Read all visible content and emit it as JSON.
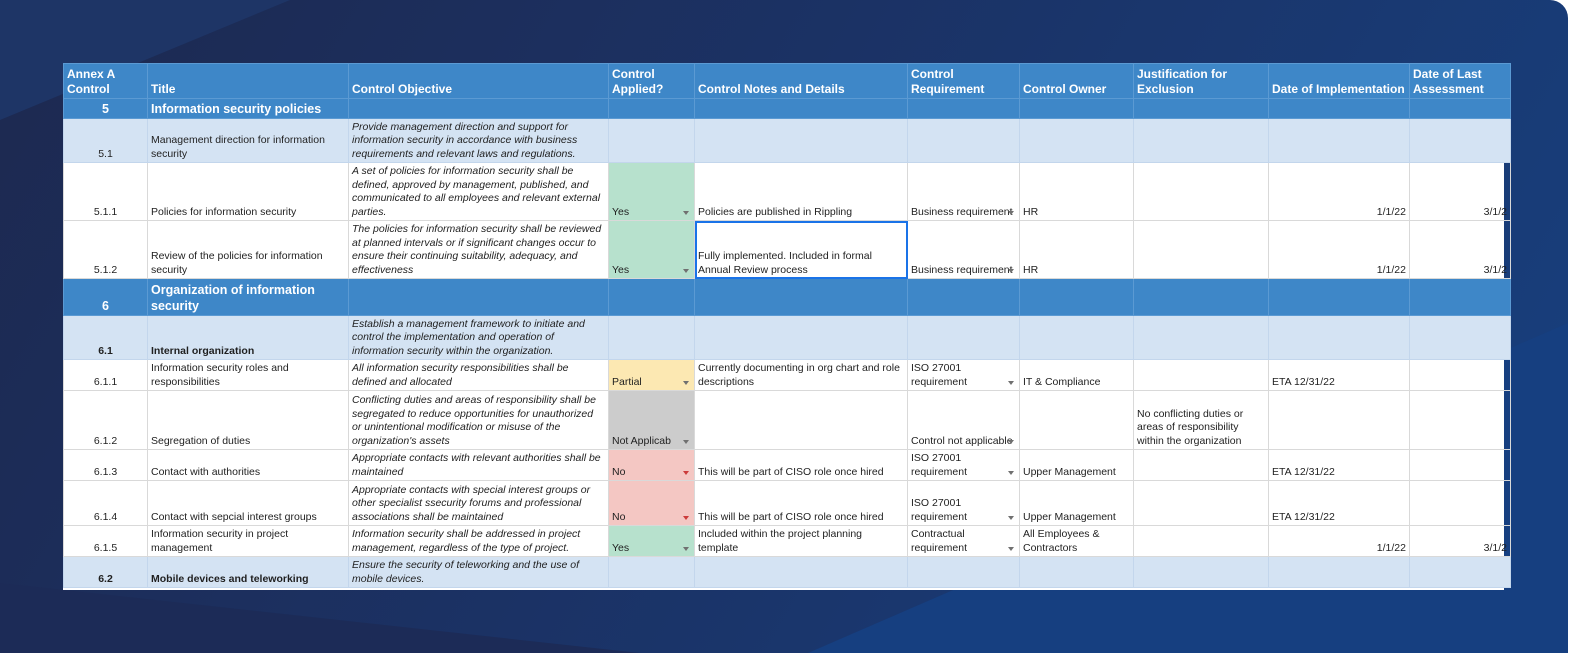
{
  "headers": {
    "annex": "Annex A Control",
    "title": "Title",
    "objective": "Control Objective",
    "applied": "Control Applied?",
    "notes": "Control Notes and Details",
    "requirement": "Control Requirement",
    "owner": "Control Owner",
    "justification": "Justification for Exclusion",
    "impl_date": "Date of Implementation",
    "assess_date": "Date of Last Assessment"
  },
  "rows": [
    {
      "num": "5",
      "title": "Information security policies"
    },
    {
      "num": "5.1",
      "title": "Management direction for information security",
      "objective": "Provide management direction and support for information security in accordance with business requirements and relevant laws and regulations."
    },
    {
      "num": "5.1.1",
      "title": "Policies for information security",
      "objective": "A set of policies for information security shall be defined, approved by management, published, and communicated to all employees and relevant external parties.",
      "applied": "Yes",
      "notes": "Policies are published in Rippling",
      "requirement": "Business requirement",
      "owner": "HR",
      "justification": "",
      "impl_date": "1/1/22",
      "assess_date": "3/1/2"
    },
    {
      "num": "5.1.2",
      "title": "Review of the policies for information security",
      "objective": "The policies for information security shall be reviewed at planned intervals or if significant changes occur to ensure their continuing suitability, adequacy, and effectiveness",
      "applied": "Yes",
      "notes": "Fully implemented. Included in formal Annual Review process",
      "requirement": "Business requirement",
      "owner": "HR",
      "justification": "",
      "impl_date": "1/1/22",
      "assess_date": "3/1/2"
    },
    {
      "num": "6",
      "title": "Organization of information security"
    },
    {
      "num": "6.1",
      "title": "Internal organization",
      "objective": "Establish a management framework to initiate and control the implementation and operation of information security within the organization."
    },
    {
      "num": "6.1.1",
      "title": "Information security roles and responsibilities",
      "objective": "All information security responsibilities shall be defined and allocated",
      "applied": "Partial",
      "notes": "Currently documenting in org chart and role descriptions",
      "requirement": "ISO 27001 requirement",
      "owner": "IT & Compliance",
      "justification": "",
      "impl_date": "ETA 12/31/22",
      "assess_date": ""
    },
    {
      "num": "6.1.2",
      "title": "Segregation of duties",
      "objective": "Conflicting duties and areas of responsibility shall be segregated to reduce opportunities for unauthorized or unintentional modification or misuse of the organization's assets",
      "applied": "Not Applicab",
      "notes": "",
      "requirement": "Control not applicable",
      "owner": "",
      "justification": "No conflicting duties or areas of responsibility within the organization",
      "impl_date": "",
      "assess_date": ""
    },
    {
      "num": "6.1.3",
      "title": "Contact with authorities",
      "objective": "Appropriate contacts with relevant authorities shall be maintained",
      "applied": "No",
      "notes": "This will be part of CISO role once hired",
      "requirement": "ISO 27001 requirement",
      "owner": "Upper Management",
      "justification": "",
      "impl_date": "ETA 12/31/22",
      "assess_date": ""
    },
    {
      "num": "6.1.4",
      "title": "Contact with sepcial interest groups",
      "objective": "Appropriate contacts with special interest groups or other specialist ssecurity forums and professional associations shall be maintained",
      "applied": "No",
      "notes": "This will be part of CISO role once hired",
      "requirement": "ISO 27001 requirement",
      "owner": "Upper Management",
      "justification": "",
      "impl_date": "ETA 12/31/22",
      "assess_date": ""
    },
    {
      "num": "6.1.5",
      "title": "Information security in project management",
      "objective": "Information security shall be addressed in project management, regardless of the type of project.",
      "applied": "Yes",
      "notes": "Included within the project planning template",
      "requirement": "Contractual requirement",
      "owner": "All Employees & Contractors",
      "justification": "",
      "impl_date": "1/1/22",
      "assess_date": "3/1/2"
    },
    {
      "num": "6.2",
      "title": "Mobile devices and teleworking",
      "objective": "Ensure the security of teleworking and the use of mobile devices."
    }
  ],
  "colors": {
    "header_blue": "#3e87c8",
    "subsection_blue": "#d4e3f3",
    "applied_yes": "#b7e1cd",
    "applied_partial": "#fce8b2",
    "applied_na": "#cccccc",
    "applied_no": "#f4c7c3",
    "selection": "#1a73e8"
  },
  "icons": {
    "dropdown": "triangle-down-icon"
  }
}
